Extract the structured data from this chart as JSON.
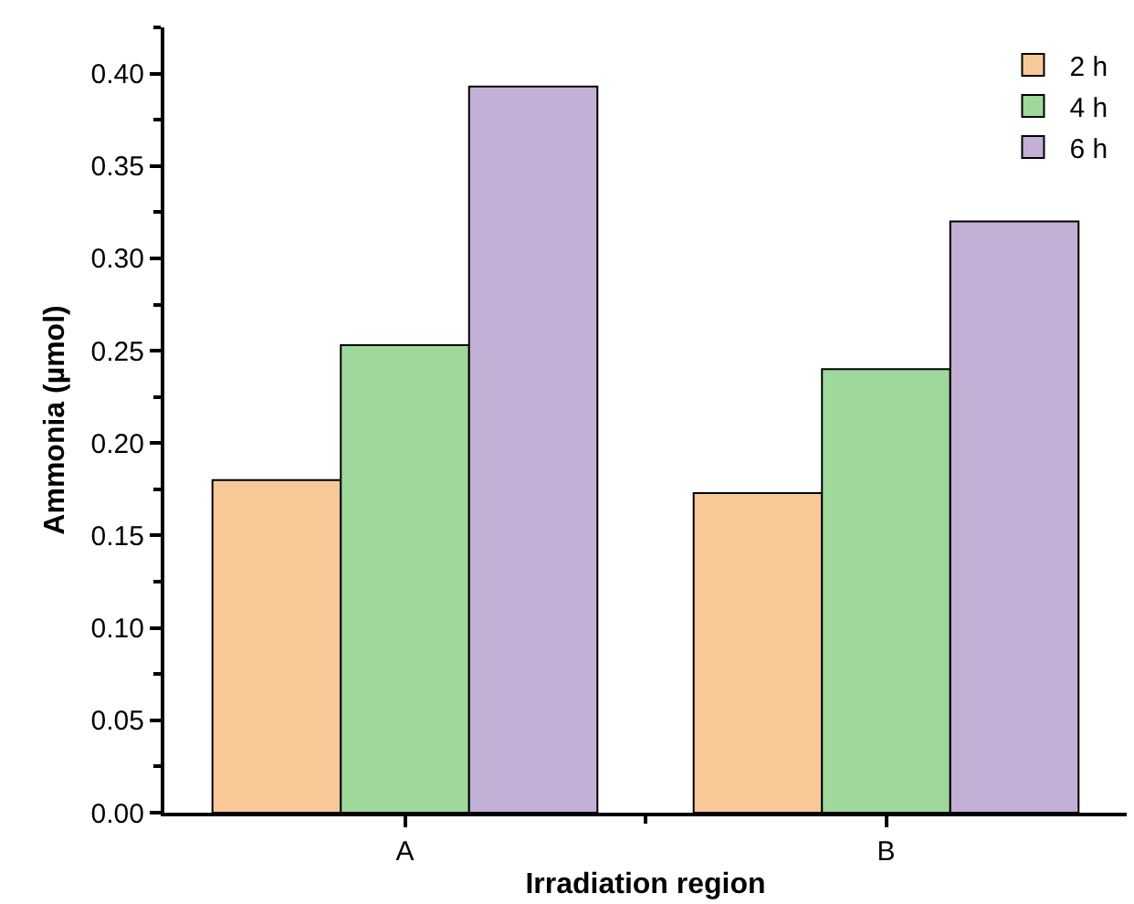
{
  "chart_data": {
    "type": "bar",
    "xlabel": "Irradiation region",
    "ylabel": "Ammonia (µmol)",
    "categories": [
      "A",
      "B"
    ],
    "series": [
      {
        "name": "2 h",
        "color": "#f9c897",
        "values": [
          0.18,
          0.173
        ]
      },
      {
        "name": "4 h",
        "color": "#9fd89b",
        "values": [
          0.253,
          0.24
        ]
      },
      {
        "name": "6 h",
        "color": "#c2b0d6",
        "values": [
          0.393,
          0.32
        ]
      }
    ],
    "ylim": [
      0,
      0.425
    ],
    "yticks": [
      {
        "value": 0,
        "label": "0.00"
      },
      0.05,
      {
        "value": 0.1,
        "label": "0.10"
      },
      0.15,
      {
        "value": 0.2,
        "label": "0.20"
      },
      0.25,
      {
        "value": 0.3,
        "label": "0.30"
      },
      0.35,
      {
        "value": 0.4,
        "label": "0.40"
      }
    ],
    "grid": false,
    "legend": "top right"
  }
}
